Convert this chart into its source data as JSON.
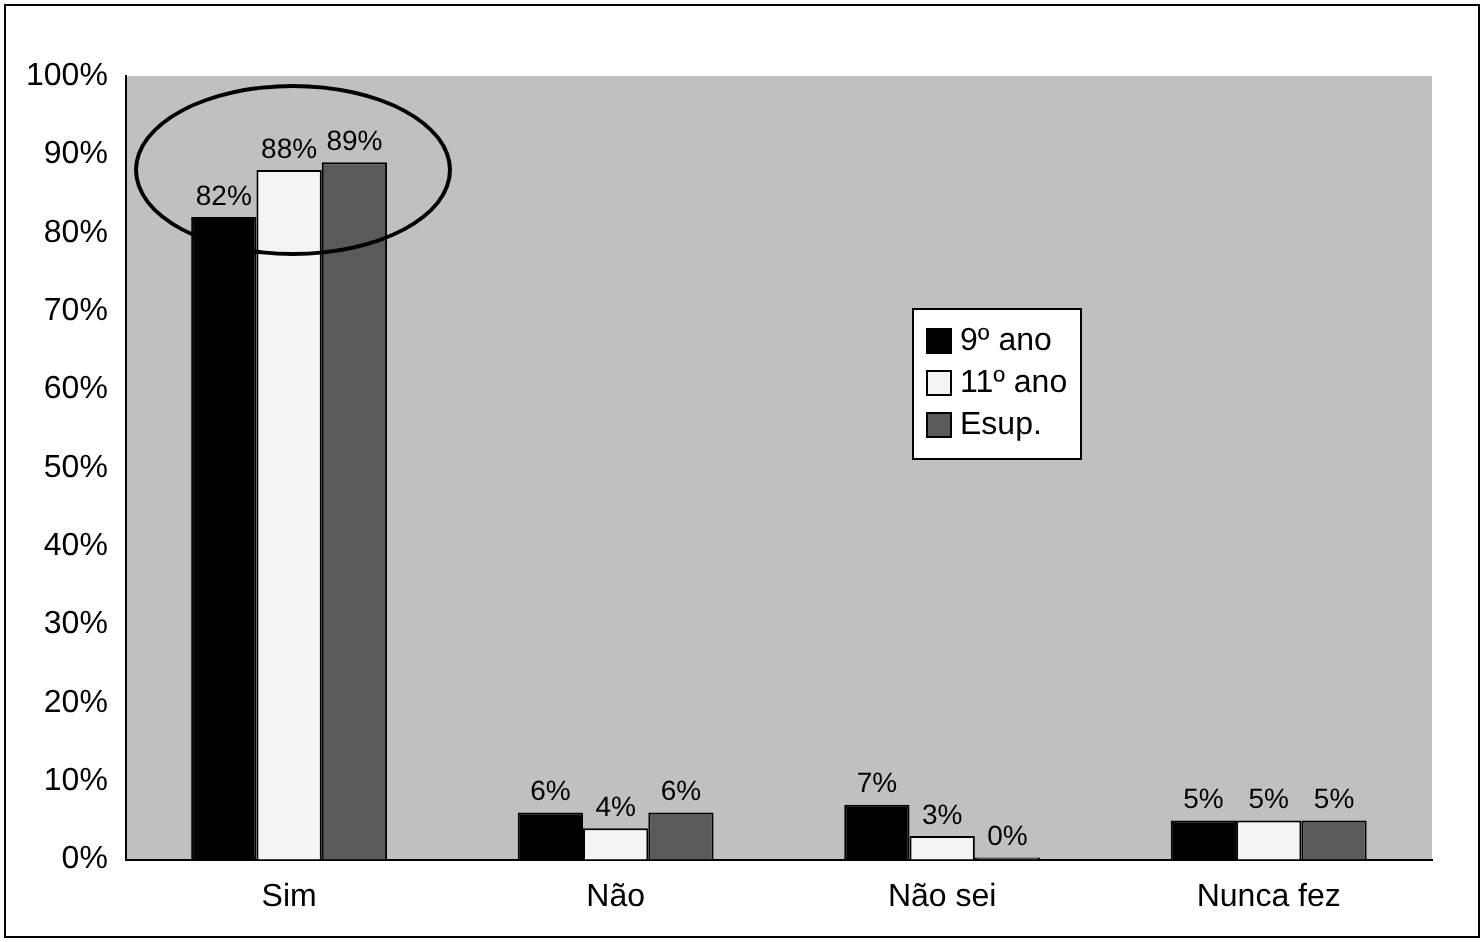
{
  "chart_data": {
    "type": "bar",
    "categories": [
      "Sim",
      "Não",
      "Não sei",
      "Nunca fez"
    ],
    "series": [
      {
        "name": "9º ano",
        "color": "#000000",
        "values": [
          82,
          6,
          7,
          5
        ],
        "value_labels": [
          "82%",
          "6%",
          "7%",
          "5%"
        ]
      },
      {
        "name": "11º ano",
        "color": "#f4f4f4",
        "values": [
          88,
          4,
          3,
          5
        ],
        "value_labels": [
          "88%",
          "4%",
          "3%",
          "5%"
        ]
      },
      {
        "name": "Esup.",
        "color": "#5a5a5a",
        "values": [
          89,
          6,
          0,
          5
        ],
        "value_labels": [
          "89%",
          "6%",
          "0%",
          "5%"
        ]
      }
    ],
    "ylim": [
      0,
      100
    ],
    "yticks": [
      {
        "value": 0,
        "label": "0%"
      },
      {
        "value": 10,
        "label": "10%"
      },
      {
        "value": 20,
        "label": "20%"
      },
      {
        "value": 30,
        "label": "30%"
      },
      {
        "value": 40,
        "label": "40%"
      },
      {
        "value": 50,
        "label": "50%"
      },
      {
        "value": 60,
        "label": "60%"
      },
      {
        "value": 70,
        "label": "70%"
      },
      {
        "value": 80,
        "label": "80%"
      },
      {
        "value": 90,
        "label": "90%"
      },
      {
        "value": 100,
        "label": "100%"
      }
    ],
    "legend": "right",
    "grid": false
  }
}
